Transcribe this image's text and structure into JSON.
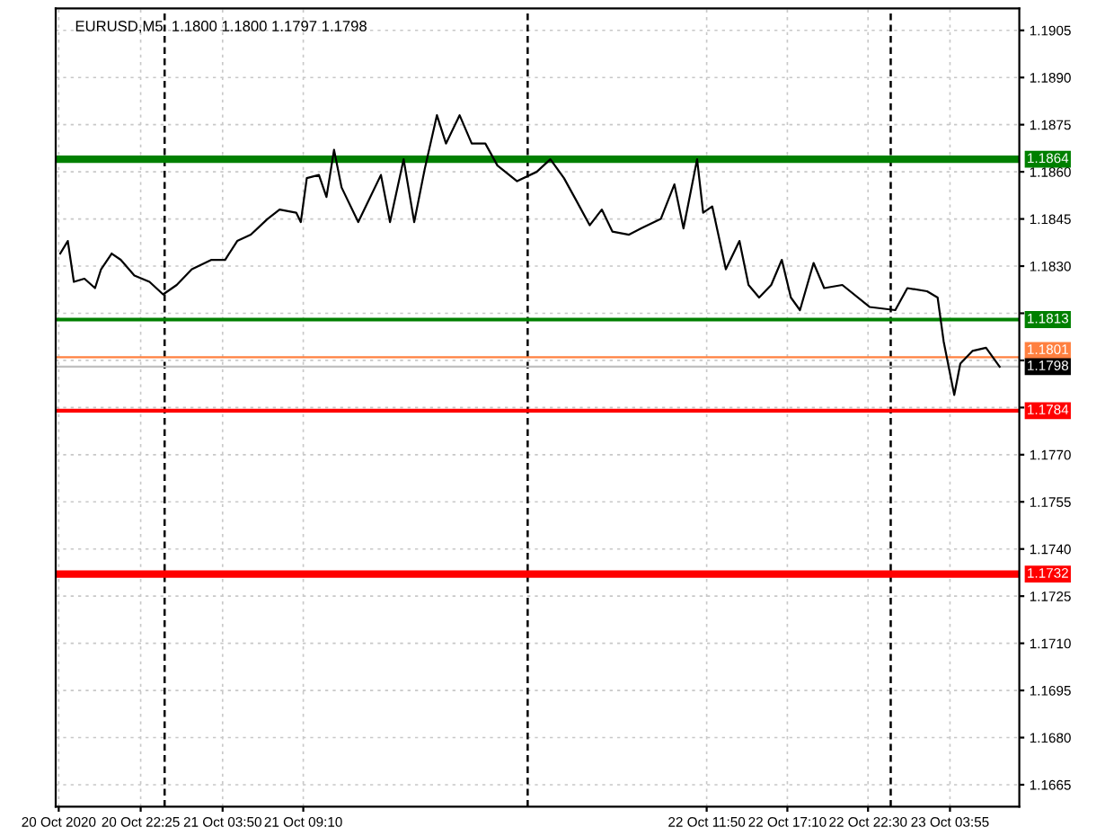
{
  "chart_data": {
    "type": "line",
    "title": "EURUSD,M5  1.1800 1.1800 1.1797 1.1798",
    "x": [
      "2020-10-20T17:06",
      "2020-10-20T17:36",
      "2020-10-20T18:00",
      "2020-10-20T18:42",
      "2020-10-20T19:24",
      "2020-10-20T19:48",
      "2020-10-20T20:30",
      "2020-10-20T21:06",
      "2020-10-20T22:00",
      "2020-10-20T23:00",
      "2020-10-20T23:54",
      "2020-10-21T00:48",
      "2020-10-21T01:48",
      "2020-10-21T03:06",
      "2020-10-21T04:00",
      "2020-10-21T04:48",
      "2020-10-21T05:42",
      "2020-10-21T06:48",
      "2020-10-21T07:36",
      "2020-10-21T08:42",
      "2020-10-21T09:00",
      "2020-10-21T09:24",
      "2020-10-21T10:12",
      "2020-10-21T10:42",
      "2020-10-21T11:12",
      "2020-10-21T11:42",
      "2020-10-21T12:48",
      "2020-10-21T13:24",
      "2020-10-21T14:18",
      "2020-10-21T14:54",
      "2020-10-21T15:48",
      "2020-10-21T16:30",
      "2020-10-21T17:12",
      "2020-10-21T18:00",
      "2020-10-21T18:36",
      "2020-10-21T19:30",
      "2020-10-21T20:18",
      "2020-10-21T21:12",
      "2020-10-21T22:00",
      "2020-10-21T23:18",
      "2020-10-22T00:36",
      "2020-10-22T01:30",
      "2020-10-22T02:24",
      "2020-10-22T03:12",
      "2020-10-22T04:06",
      "2020-10-22T04:54",
      "2020-10-22T05:36",
      "2020-10-22T06:42",
      "2020-10-22T07:30",
      "2020-10-22T08:48",
      "2020-10-22T09:42",
      "2020-10-22T10:18",
      "2020-10-22T11:12",
      "2020-10-22T11:36",
      "2020-10-22T12:12",
      "2020-10-22T13:06",
      "2020-10-22T14:00",
      "2020-10-22T14:36",
      "2020-10-22T15:18",
      "2020-10-22T16:06",
      "2020-10-22T16:48",
      "2020-10-22T17:24",
      "2020-10-22T18:00",
      "2020-10-22T18:54",
      "2020-10-22T19:36",
      "2020-10-22T20:48",
      "2020-10-22T22:36",
      "2020-10-23T00:18",
      "2020-10-23T01:06",
      "2020-10-23T02:24",
      "2020-10-23T03:06",
      "2020-10-23T03:30",
      "2020-10-23T04:12",
      "2020-10-23T04:36",
      "2020-10-23T05:24",
      "2020-10-23T06:18",
      "2020-10-23T07:12"
    ],
    "series": [
      {
        "color": "#000000",
        "values": [
          1.1834,
          1.1838,
          1.1825,
          1.1826,
          1.1823,
          1.1829,
          1.1834,
          1.1832,
          1.1827,
          1.1825,
          1.1821,
          1.1824,
          1.1829,
          1.1832,
          1.1832,
          1.1838,
          1.184,
          1.1845,
          1.1848,
          1.1847,
          1.1844,
          1.1858,
          1.1859,
          1.1852,
          1.1867,
          1.1855,
          1.1844,
          1.185,
          1.1859,
          1.1844,
          1.1864,
          1.1844,
          1.1861,
          1.1878,
          1.1869,
          1.1878,
          1.1869,
          1.1869,
          1.1862,
          1.1857,
          1.186,
          1.1864,
          1.1858,
          1.1851,
          1.1843,
          1.1848,
          1.1841,
          1.184,
          1.1842,
          1.1845,
          1.1856,
          1.1842,
          1.1864,
          1.1847,
          1.1849,
          1.1829,
          1.1838,
          1.1824,
          1.182,
          1.1824,
          1.1832,
          1.182,
          1.1816,
          1.1831,
          1.1823,
          1.1824,
          1.1817,
          1.1816,
          1.1823,
          1.1822,
          1.182,
          1.1806,
          1.1789,
          1.1799,
          1.1803,
          1.1804,
          1.1798
        ]
      }
    ],
    "xlim": [
      "2020-10-20T16:48",
      "2020-10-23T08:30"
    ],
    "xticks": [
      {
        "value": "2020-10-20T17:00",
        "label": "20 Oct 2020"
      },
      {
        "value": "2020-10-20T22:25",
        "label": "20 Oct 22:25"
      },
      {
        "value": "2020-10-21T03:50",
        "label": "21 Oct 03:50"
      },
      {
        "value": "2020-10-21T09:10",
        "label": "21 Oct 09:10"
      },
      {
        "value": "2020-10-22T11:50",
        "label": "22 Oct 11:50"
      },
      {
        "value": "2020-10-22T17:10",
        "label": "22 Oct 17:10"
      },
      {
        "value": "2020-10-22T22:30",
        "label": "22 Oct 22:30"
      },
      {
        "value": "2020-10-23T03:55",
        "label": "23 Oct 03:55"
      }
    ],
    "ylim": [
      1.1658,
      1.1912
    ],
    "yticks": [
      {
        "value": 1.1665,
        "label": "1.1665"
      },
      {
        "value": 1.168,
        "label": "1.1680"
      },
      {
        "value": 1.1695,
        "label": "1.1695"
      },
      {
        "value": 1.171,
        "label": "1.1710"
      },
      {
        "value": 1.1725,
        "label": "1.1725"
      },
      {
        "value": 1.174,
        "label": "1.1740"
      },
      {
        "value": 1.1755,
        "label": "1.1755"
      },
      {
        "value": 1.177,
        "label": "1.1770"
      },
      {
        "value": 1.1785,
        "label": null
      },
      {
        "value": 1.18,
        "label": null
      },
      {
        "value": 1.1815,
        "label": null
      },
      {
        "value": 1.183,
        "label": "1.1830"
      },
      {
        "value": 1.1845,
        "label": "1.1845"
      },
      {
        "value": 1.186,
        "label": "1.1860"
      },
      {
        "value": 1.1875,
        "label": "1.1875"
      },
      {
        "value": 1.189,
        "label": "1.1890"
      },
      {
        "value": 1.1905,
        "label": "1.1905"
      }
    ],
    "grid": true,
    "line_style": "solid",
    "ref_lines": [
      {
        "axis": "x",
        "value": "2020-10-21",
        "color": "#000000",
        "line_style": "dashed"
      },
      {
        "axis": "x",
        "value": "2020-10-22",
        "color": "#000000",
        "line_style": "dashed"
      },
      {
        "axis": "x",
        "value": "2020-10-23",
        "color": "#000000",
        "line_style": "dashed"
      },
      {
        "axis": "y",
        "value": 1.1864,
        "label": "1.1864",
        "color": "#008000"
      },
      {
        "axis": "y",
        "value": 1.1813,
        "label": "1.1813",
        "color": "#008000"
      },
      {
        "axis": "y",
        "value": 1.1801,
        "label": "1.1801",
        "color": "#ff8040"
      },
      {
        "axis": "y",
        "value": 1.1798,
        "label": "1.1798",
        "color": "#c0c0c0"
      },
      {
        "axis": "y",
        "value": 1.1784,
        "label": "1.1784",
        "color": "#ff0000"
      },
      {
        "axis": "y",
        "value": 1.1732,
        "label": "1.1732",
        "color": "#ff0000"
      }
    ]
  }
}
